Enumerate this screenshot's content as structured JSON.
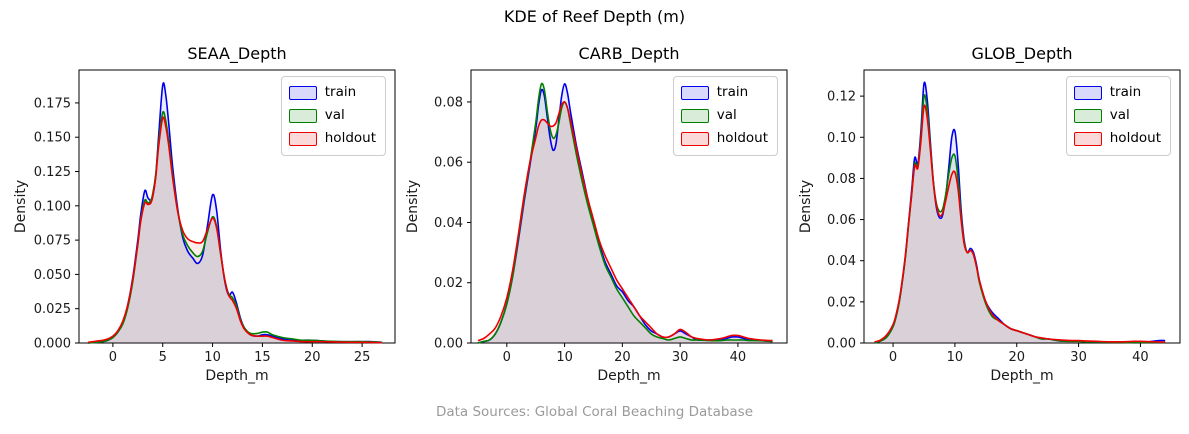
{
  "title": "KDE of Reef Depth (m)",
  "footer": "Data Sources: Global Coral Beaching Database",
  "legend": {
    "labels": [
      "train",
      "val",
      "holdout"
    ]
  },
  "colors": {
    "train": "#0000ee",
    "val": "#008000",
    "holdout": "#ee0000",
    "fill_opacity": 0.08,
    "swatch_fill_opacity": 0.15,
    "axis": "#000000",
    "text": "#1a1a1a",
    "footer_text": "#9a9a9a"
  },
  "chart_data": [
    {
      "type": "area",
      "title": "SEAA_Depth",
      "xlabel": "Depth_m",
      "ylabel": "Density",
      "legend_position": "upper right",
      "grid": false,
      "xlim": [
        -3.4,
        28.3
      ],
      "ylim": [
        0,
        0.199
      ],
      "xticks": [
        0,
        5,
        10,
        15,
        20,
        25
      ],
      "yticks": [
        0.0,
        0.025,
        0.05,
        0.075,
        0.1,
        0.125,
        0.15,
        0.175
      ],
      "ytick_decimals": 3,
      "x": [
        -2.5,
        -2,
        -1.5,
        -1,
        -0.5,
        0,
        0.5,
        1,
        1.5,
        2,
        2.5,
        2.8,
        3.2,
        3.5,
        3.8,
        4,
        4.3,
        4.6,
        5,
        5.3,
        5.6,
        6,
        6.5,
        7,
        7.5,
        8,
        8.5,
        9,
        9.5,
        10,
        10.4,
        10.8,
        11.2,
        11.6,
        12,
        12.4,
        12.8,
        13.2,
        13.8,
        14.5,
        15,
        15.5,
        16,
        17,
        18,
        19,
        20,
        21,
        22,
        23,
        24,
        25,
        26,
        27
      ],
      "series": [
        {
          "name": "train",
          "values": [
            0,
            0.0003,
            0.0006,
            0.001,
            0.002,
            0.004,
            0.008,
            0.015,
            0.028,
            0.048,
            0.075,
            0.094,
            0.111,
            0.106,
            0.104,
            0.107,
            0.122,
            0.152,
            0.188,
            0.181,
            0.16,
            0.128,
            0.098,
            0.077,
            0.067,
            0.062,
            0.058,
            0.064,
            0.086,
            0.108,
            0.097,
            0.068,
            0.046,
            0.035,
            0.037,
            0.029,
            0.018,
            0.011,
            0.006,
            0.005,
            0.006,
            0.006,
            0.005,
            0.003,
            0.002,
            0.002,
            0.002,
            0.0015,
            0.001,
            0.001,
            0.001,
            0.001,
            0.001,
            0.0005
          ]
        },
        {
          "name": "val",
          "values": [
            0,
            0.0003,
            0.0006,
            0.001,
            0.002,
            0.004,
            0.008,
            0.014,
            0.026,
            0.045,
            0.072,
            0.09,
            0.104,
            0.102,
            0.104,
            0.109,
            0.123,
            0.147,
            0.168,
            0.162,
            0.147,
            0.122,
            0.096,
            0.079,
            0.071,
            0.066,
            0.063,
            0.067,
            0.081,
            0.092,
            0.085,
            0.065,
            0.047,
            0.036,
            0.033,
            0.027,
            0.017,
            0.011,
            0.007,
            0.007,
            0.008,
            0.008,
            0.006,
            0.004,
            0.003,
            0.002,
            0.002,
            0.0015,
            0.0012,
            0.001,
            0.001,
            0.001,
            0.0008,
            0.0005
          ]
        },
        {
          "name": "holdout",
          "values": [
            0.0005,
            0.001,
            0.0015,
            0.002,
            0.003,
            0.005,
            0.009,
            0.016,
            0.028,
            0.047,
            0.072,
            0.089,
            0.102,
            0.101,
            0.102,
            0.107,
            0.121,
            0.144,
            0.164,
            0.158,
            0.144,
            0.12,
            0.096,
            0.082,
            0.076,
            0.074,
            0.073,
            0.074,
            0.083,
            0.091,
            0.084,
            0.066,
            0.047,
            0.035,
            0.031,
            0.025,
            0.016,
            0.01,
            0.006,
            0.005,
            0.005,
            0.005,
            0.004,
            0.002,
            0.0015,
            0.001,
            0.001,
            0.001,
            0.0008,
            0.0006,
            0.0005,
            0.0005,
            0.0004,
            0.0003
          ]
        }
      ]
    },
    {
      "type": "area",
      "title": "CARB_Depth",
      "xlabel": "Depth_m",
      "ylabel": "Density",
      "legend_position": "upper right",
      "grid": false,
      "xlim": [
        -6.2,
        48.5
      ],
      "ylim": [
        0,
        0.0906
      ],
      "xticks": [
        0,
        10,
        20,
        30,
        40
      ],
      "yticks": [
        0.0,
        0.02,
        0.04,
        0.06,
        0.08
      ],
      "ytick_decimals": 2,
      "x": [
        -5,
        -4,
        -3,
        -2,
        -1,
        0,
        1,
        2,
        3,
        4,
        5,
        5.5,
        6,
        6.5,
        7,
        7.5,
        8,
        8.5,
        9,
        9.5,
        10,
        10.5,
        11,
        12,
        13,
        14,
        15,
        16,
        17,
        18,
        19,
        20,
        21,
        22,
        23,
        24,
        25,
        26,
        27,
        28,
        29,
        30,
        31,
        32,
        33,
        35,
        37,
        38,
        39,
        40,
        41,
        42,
        44,
        46
      ],
      "series": [
        {
          "name": "train",
          "values": [
            0,
            0.0005,
            0.001,
            0.003,
            0.007,
            0.013,
            0.022,
            0.034,
            0.047,
            0.059,
            0.071,
            0.079,
            0.084,
            0.082,
            0.075,
            0.068,
            0.064,
            0.066,
            0.074,
            0.082,
            0.086,
            0.083,
            0.077,
            0.066,
            0.057,
            0.048,
            0.04,
            0.033,
            0.027,
            0.023,
            0.019,
            0.017,
            0.014,
            0.012,
            0.009,
            0.006,
            0.004,
            0.003,
            0.002,
            0.002,
            0.003,
            0.004,
            0.003,
            0.002,
            0.001,
            0.001,
            0.001,
            0.0015,
            0.002,
            0.002,
            0.0015,
            0.001,
            0.0008,
            0.0005
          ]
        },
        {
          "name": "val",
          "values": [
            0,
            0.0005,
            0.001,
            0.003,
            0.007,
            0.013,
            0.022,
            0.035,
            0.048,
            0.06,
            0.073,
            0.081,
            0.086,
            0.084,
            0.077,
            0.071,
            0.068,
            0.069,
            0.073,
            0.078,
            0.08,
            0.078,
            0.073,
            0.063,
            0.054,
            0.046,
            0.039,
            0.032,
            0.026,
            0.022,
            0.018,
            0.015,
            0.012,
            0.009,
            0.007,
            0.005,
            0.003,
            0.002,
            0.0015,
            0.001,
            0.0015,
            0.002,
            0.0015,
            0.001,
            0.001,
            0.0008,
            0.0008,
            0.001,
            0.001,
            0.001,
            0.001,
            0.0008,
            0.0008,
            0.0005
          ]
        },
        {
          "name": "holdout",
          "values": [
            0.0008,
            0.0015,
            0.003,
            0.005,
            0.009,
            0.015,
            0.024,
            0.036,
            0.049,
            0.06,
            0.068,
            0.072,
            0.074,
            0.074,
            0.073,
            0.072,
            0.072,
            0.073,
            0.076,
            0.079,
            0.08,
            0.078,
            0.074,
            0.065,
            0.056,
            0.048,
            0.041,
            0.034,
            0.029,
            0.025,
            0.021,
            0.018,
            0.015,
            0.012,
            0.009,
            0.007,
            0.005,
            0.003,
            0.002,
            0.002,
            0.003,
            0.0045,
            0.0035,
            0.002,
            0.0015,
            0.001,
            0.0015,
            0.002,
            0.0025,
            0.0025,
            0.002,
            0.0015,
            0.001,
            0.0008
          ]
        }
      ]
    },
    {
      "type": "area",
      "title": "GLOB_Depth",
      "xlabel": "Depth_m",
      "ylabel": "Density",
      "legend_position": "upper right",
      "grid": false,
      "xlim": [
        -4.7,
        46.4
      ],
      "ylim": [
        0,
        0.1327
      ],
      "xticks": [
        0,
        10,
        20,
        30,
        40
      ],
      "yticks": [
        0.0,
        0.02,
        0.04,
        0.06,
        0.08,
        0.1,
        0.12
      ],
      "ytick_decimals": 2,
      "x": [
        -3,
        -2,
        -1,
        0,
        0.5,
        1,
        1.5,
        2,
        2.5,
        3,
        3.5,
        4,
        4.5,
        5,
        5.5,
        6,
        6.5,
        7,
        7.5,
        8,
        8.5,
        9,
        9.5,
        10,
        10.5,
        11,
        11.5,
        12,
        12.5,
        13,
        13.5,
        14,
        15,
        16,
        17,
        18,
        19,
        20,
        21,
        22,
        23,
        24,
        25,
        27,
        29,
        30,
        31,
        33,
        35,
        37,
        39,
        40,
        41,
        43,
        44
      ],
      "series": [
        {
          "name": "train",
          "values": [
            0,
            0.001,
            0.003,
            0.008,
            0.013,
            0.02,
            0.03,
            0.042,
            0.058,
            0.074,
            0.09,
            0.087,
            0.103,
            0.126,
            0.119,
            0.099,
            0.079,
            0.066,
            0.061,
            0.062,
            0.071,
            0.085,
            0.1,
            0.103,
            0.088,
            0.065,
            0.05,
            0.044,
            0.046,
            0.044,
            0.038,
            0.03,
            0.02,
            0.015,
            0.012,
            0.009,
            0.007,
            0.006,
            0.005,
            0.004,
            0.003,
            0.002,
            0.002,
            0.001,
            0.001,
            0.001,
            0.0008,
            0.0005,
            0.0005,
            0.0004,
            0.0004,
            0.0005,
            0.0005,
            0.0012,
            0.0012
          ]
        },
        {
          "name": "val",
          "values": [
            0,
            0.001,
            0.003,
            0.008,
            0.013,
            0.02,
            0.03,
            0.042,
            0.057,
            0.072,
            0.087,
            0.086,
            0.1,
            0.12,
            0.114,
            0.097,
            0.079,
            0.068,
            0.064,
            0.065,
            0.072,
            0.082,
            0.09,
            0.091,
            0.08,
            0.062,
            0.049,
            0.044,
            0.045,
            0.043,
            0.037,
            0.029,
            0.019,
            0.013,
            0.011,
            0.009,
            0.007,
            0.006,
            0.005,
            0.004,
            0.003,
            0.002,
            0.002,
            0.001,
            0.0008,
            0.0008,
            0.0006,
            0.0005,
            0.0004,
            0.0003,
            0.0003,
            0.0003,
            0.0003,
            0.0003,
            0.0003
          ]
        },
        {
          "name": "holdout",
          "values": [
            0.0005,
            0.0015,
            0.004,
            0.009,
            0.014,
            0.021,
            0.031,
            0.043,
            0.058,
            0.072,
            0.086,
            0.085,
            0.098,
            0.115,
            0.11,
            0.095,
            0.078,
            0.067,
            0.062,
            0.063,
            0.069,
            0.076,
            0.082,
            0.083,
            0.075,
            0.06,
            0.048,
            0.044,
            0.045,
            0.043,
            0.037,
            0.03,
            0.02,
            0.014,
            0.011,
            0.009,
            0.007,
            0.006,
            0.005,
            0.004,
            0.003,
            0.0025,
            0.002,
            0.0015,
            0.0012,
            0.0012,
            0.001,
            0.0008,
            0.0006,
            0.0006,
            0.0008,
            0.0008,
            0.0007,
            0.0005,
            0.0004
          ]
        }
      ]
    }
  ]
}
